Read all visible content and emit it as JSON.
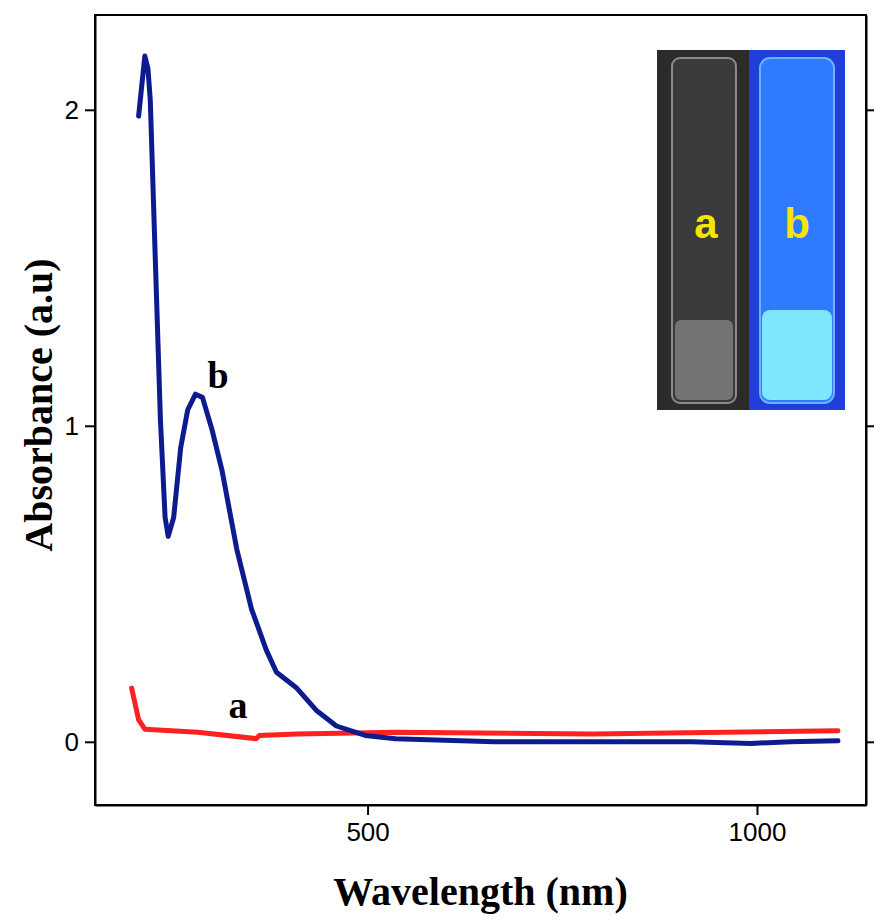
{
  "chart_data": {
    "type": "line",
    "x_label": "Wavelength (nm)",
    "y_label": "Absorbance (a.u)",
    "xlim": [
      150,
      1140
    ],
    "ylim": [
      -0.2,
      2.3
    ],
    "xticks": [
      500,
      1000
    ],
    "yticks": [
      0,
      1,
      2
    ],
    "grid": false,
    "series": [
      {
        "name": "a",
        "color": "#ff2020",
        "x": [
          197,
          206,
          214,
          282,
          357,
          361,
          409,
          536,
          789,
          1104
        ],
        "values": [
          0.17,
          0.07,
          0.04,
          0.03,
          0.01,
          0.02,
          0.025,
          0.03,
          0.025,
          0.035
        ]
      },
      {
        "name": "b",
        "color": "#0c1c8e",
        "x": [
          206,
          214,
          218,
          221,
          227,
          234,
          240,
          244,
          251,
          260,
          269,
          279,
          288,
          300,
          313,
          332,
          351,
          370,
          383,
          409,
          434,
          460,
          497,
          536,
          662,
          916,
          992,
          1043,
          1104
        ],
        "values": [
          1.98,
          2.17,
          2.13,
          2.03,
          1.56,
          1.02,
          0.71,
          0.65,
          0.71,
          0.93,
          1.05,
          1.1,
          1.09,
          0.99,
          0.86,
          0.61,
          0.42,
          0.29,
          0.22,
          0.17,
          0.1,
          0.05,
          0.02,
          0.01,
          0.0,
          0.0,
          -0.005,
          0.0,
          0.003
        ]
      }
    ]
  }
}
